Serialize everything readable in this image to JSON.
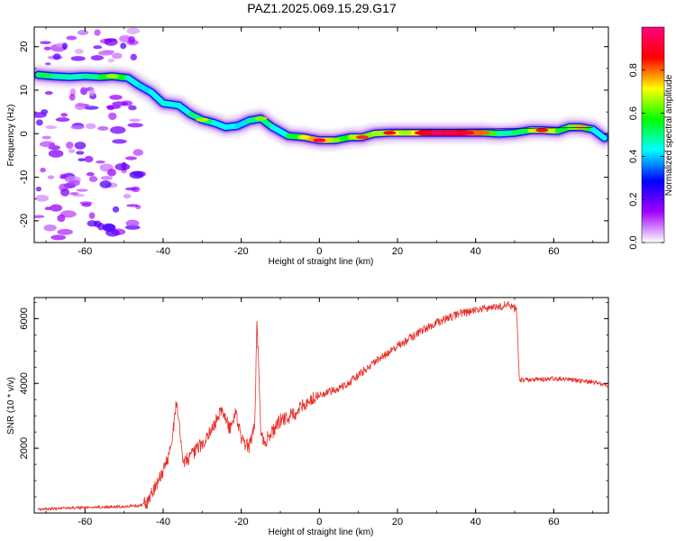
{
  "page_title": "PAZ1.2025.069.15.29.G17",
  "chart_data": [
    {
      "type": "heatmap",
      "title": "PAZ1.2025.069.15.29.G17",
      "xlabel": "Height of straight line (km)",
      "ylabel": "Frequency (Hz)",
      "xlim": [
        -73,
        74
      ],
      "ylim": [
        -25,
        24.5
      ],
      "xticks": [
        -60,
        -40,
        -20,
        0,
        20,
        40,
        60
      ],
      "yticks": [
        -20,
        -10,
        0,
        10,
        20
      ],
      "colorbar": {
        "label": "Normalized spectral amplitude",
        "range": [
          0,
          1
        ],
        "ticks": [
          0.0,
          0.2,
          0.4,
          0.6,
          0.8
        ],
        "colors": [
          "#ffffff",
          "#a000ff",
          "#0000ff",
          "#00ffff",
          "#00ff00",
          "#ffff00",
          "#ff0000",
          "#ff0080"
        ]
      },
      "ridge": [
        {
          "x": -72,
          "f": 13.5,
          "a": 0.55
        },
        {
          "x": -68,
          "f": 13.2,
          "a": 0.5
        },
        {
          "x": -64,
          "f": 13.0,
          "a": 0.45
        },
        {
          "x": -60,
          "f": 13.2,
          "a": 0.48
        },
        {
          "x": -56,
          "f": 13.0,
          "a": 0.5
        },
        {
          "x": -53,
          "f": 13.2,
          "a": 0.62
        },
        {
          "x": -49,
          "f": 12.8,
          "a": 0.5
        },
        {
          "x": -46,
          "f": 11.0,
          "a": 0.4
        },
        {
          "x": -43,
          "f": 9.5,
          "a": 0.42
        },
        {
          "x": -40,
          "f": 7.0,
          "a": 0.45
        },
        {
          "x": -36,
          "f": 6.5,
          "a": 0.45
        },
        {
          "x": -33,
          "f": 4.5,
          "a": 0.4
        },
        {
          "x": -30,
          "f": 3.2,
          "a": 0.62
        },
        {
          "x": -27,
          "f": 2.5,
          "a": 0.42
        },
        {
          "x": -24,
          "f": 1.5,
          "a": 0.45
        },
        {
          "x": -21,
          "f": 1.8,
          "a": 0.42
        },
        {
          "x": -18,
          "f": 3.0,
          "a": 0.4
        },
        {
          "x": -15,
          "f": 3.5,
          "a": 0.6
        },
        {
          "x": -12,
          "f": 1.5,
          "a": 0.42
        },
        {
          "x": -8,
          "f": -0.5,
          "a": 0.45
        },
        {
          "x": -4,
          "f": -0.8,
          "a": 0.65
        },
        {
          "x": 0,
          "f": -1.5,
          "a": 0.88
        },
        {
          "x": 4,
          "f": -1.5,
          "a": 0.6
        },
        {
          "x": 8,
          "f": -0.8,
          "a": 0.55
        },
        {
          "x": 11,
          "f": -0.8,
          "a": 0.78
        },
        {
          "x": 14,
          "f": 0.0,
          "a": 0.5
        },
        {
          "x": 18,
          "f": 0.2,
          "a": 0.82
        },
        {
          "x": 22,
          "f": 0.2,
          "a": 0.6
        },
        {
          "x": 26,
          "f": 0.2,
          "a": 0.82
        },
        {
          "x": 30,
          "f": 0.2,
          "a": 0.92
        },
        {
          "x": 34,
          "f": 0.2,
          "a": 0.88
        },
        {
          "x": 38,
          "f": 0.2,
          "a": 0.85
        },
        {
          "x": 42,
          "f": 0.2,
          "a": 0.75
        },
        {
          "x": 46,
          "f": 0.0,
          "a": 0.45
        },
        {
          "x": 50,
          "f": 0.2,
          "a": 0.5
        },
        {
          "x": 54,
          "f": 0.8,
          "a": 0.55
        },
        {
          "x": 57,
          "f": 0.8,
          "a": 0.8
        },
        {
          "x": 61,
          "f": 0.6,
          "a": 0.55
        },
        {
          "x": 64,
          "f": 1.5,
          "a": 0.55
        },
        {
          "x": 67,
          "f": 1.5,
          "a": 0.72
        },
        {
          "x": 70,
          "f": 1.0,
          "a": 0.45
        },
        {
          "x": 73,
          "f": -1.0,
          "a": 0.4
        }
      ]
    },
    {
      "type": "line",
      "xlabel": "Height of straight line (km)",
      "ylabel": "SNR (10 * v/v)",
      "xlim": [
        -73,
        74
      ],
      "ylim": [
        0,
        6650
      ],
      "xticks": [
        -60,
        -40,
        -20,
        0,
        20,
        40,
        60
      ],
      "yticks": [
        2000,
        4000,
        6000
      ],
      "series": [
        {
          "color": "#e8302a",
          "x": [
            -72,
            -65,
            -58,
            -50,
            -46,
            -44,
            -42,
            -40,
            -38,
            -36.5,
            -35,
            -33,
            -31,
            -29,
            -27,
            -25,
            -23,
            -21.5,
            -20,
            -18,
            -16.5,
            -16,
            -15,
            -14,
            -12,
            -10,
            -8,
            -6,
            -4,
            -2,
            0,
            4,
            8,
            12,
            16,
            20,
            24,
            28,
            32,
            36,
            40,
            44,
            48,
            50.5,
            51.2,
            55,
            60,
            65,
            70,
            74
          ],
          "y": [
            120,
            150,
            170,
            200,
            230,
            350,
            800,
            1300,
            2000,
            3500,
            1600,
            1750,
            2000,
            2300,
            2700,
            3200,
            2600,
            3100,
            2300,
            2000,
            2800,
            6050,
            2500,
            2200,
            2500,
            2850,
            2950,
            3100,
            3350,
            3500,
            3620,
            3800,
            4050,
            4450,
            4800,
            5150,
            5450,
            5750,
            5980,
            6150,
            6250,
            6350,
            6420,
            6300,
            4100,
            4120,
            4150,
            4100,
            4050,
            3930
          ]
        }
      ]
    }
  ]
}
